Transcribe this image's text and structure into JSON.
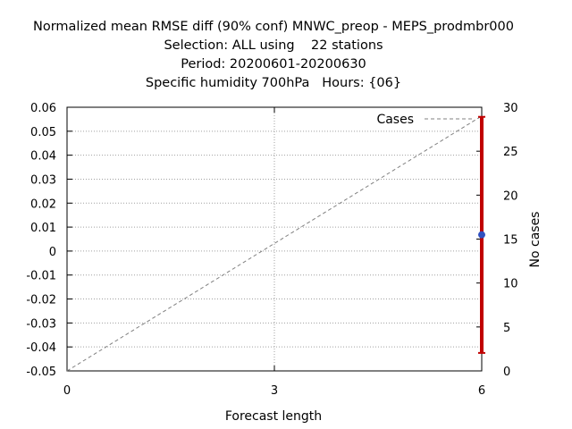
{
  "chart_data": {
    "type": "line",
    "title_lines": [
      "Normalized mean RMSE diff (90% conf) MNWC_preop - MEPS_prodmbr000",
      "Selection: ALL using    22 stations",
      "Period: 20200601-20200630",
      "Specific humidity 700hPa   Hours: {06}"
    ],
    "xlabel": "Forecast length",
    "ylabel": "",
    "y2label": "No cases",
    "xlim": [
      0,
      6
    ],
    "ylim": [
      -0.05,
      0.06
    ],
    "y2lim": [
      0,
      30
    ],
    "x_ticks": [
      "0",
      "3",
      "6"
    ],
    "y_ticks": [
      "0.06",
      "0.05",
      "0.04",
      "0.03",
      "0.02",
      "0.01",
      "0",
      "-0.01",
      "-0.02",
      "-0.03",
      "-0.04",
      "-0.05"
    ],
    "y2_ticks": [
      "30",
      "25",
      "20",
      "15",
      "10",
      "5",
      "0"
    ],
    "grid": true,
    "legend_position": "top-right",
    "series": [
      {
        "name": "Cases",
        "axis": "y2",
        "style": "dashed",
        "color": "#808080",
        "x": [
          0,
          6
        ],
        "y": [
          0,
          29
        ]
      },
      {
        "axis": "y",
        "style": "point",
        "color": "#3050c0",
        "x": [
          6
        ],
        "y": [
          0.0068
        ]
      }
    ],
    "error_bars": [
      {
        "x": 6,
        "low": -0.0425,
        "high": 0.056,
        "color": "#c00000"
      }
    ]
  }
}
